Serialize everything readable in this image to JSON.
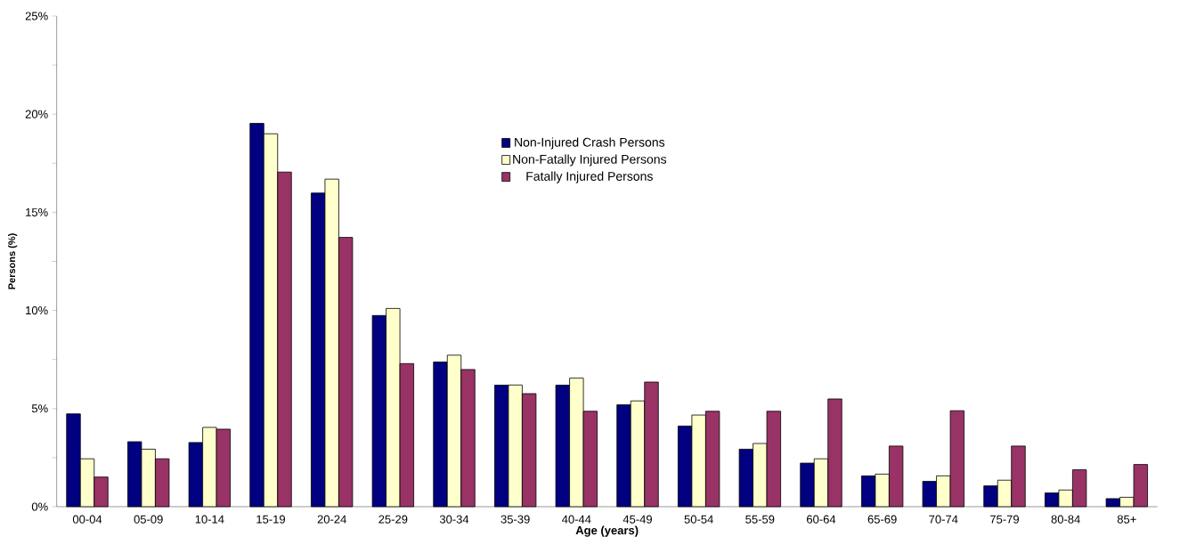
{
  "chart_data": {
    "type": "bar",
    "xlabel": "Age (years)",
    "ylabel": "Persons (%)",
    "categories": [
      "00-04",
      "05-09",
      "10-14",
      "15-19",
      "20-24",
      "25-29",
      "30-34",
      "35-39",
      "40-44",
      "45-49",
      "50-54",
      "55-59",
      "60-64",
      "65-69",
      "70-74",
      "75-79",
      "80-84",
      "85+"
    ],
    "series": [
      {
        "name": "Non-Injured Crash Persons",
        "color": "#000080",
        "values": [
          4.73,
          3.31,
          3.27,
          19.53,
          15.98,
          9.74,
          7.37,
          6.19,
          6.19,
          5.19,
          4.11,
          2.93,
          2.22,
          1.57,
          1.29,
          1.06,
          0.7,
          0.41
        ]
      },
      {
        "name": "Non-Fatally Injured Persons",
        "color": "#ffffcc",
        "values": [
          2.44,
          2.93,
          4.04,
          19.0,
          16.69,
          10.1,
          7.72,
          6.2,
          6.55,
          5.39,
          4.67,
          3.22,
          2.44,
          1.66,
          1.57,
          1.35,
          0.85,
          0.48
        ]
      },
      {
        "name": "Fatally Injured Persons",
        "color": "#993366",
        "values": [
          1.51,
          2.44,
          3.95,
          17.05,
          13.72,
          7.29,
          6.99,
          5.76,
          4.86,
          6.35,
          4.86,
          4.86,
          5.49,
          3.09,
          4.89,
          3.09,
          1.88,
          2.15
        ]
      }
    ],
    "ylim": [
      0,
      25
    ],
    "yticks": [
      {
        "value": 0,
        "label": "0%"
      },
      {
        "value": 2.5,
        "label": null
      },
      {
        "value": 5,
        "label": "5%"
      },
      {
        "value": 7.5,
        "label": null
      },
      {
        "value": 10,
        "label": "10%"
      },
      {
        "value": 12.5,
        "label": null
      },
      {
        "value": 15,
        "label": "15%"
      },
      {
        "value": 17.5,
        "label": null
      },
      {
        "value": 20,
        "label": "20%"
      },
      {
        "value": 22.5,
        "label": null
      },
      {
        "value": 25,
        "label": "25%"
      }
    ],
    "grid": false,
    "legend": "top"
  }
}
